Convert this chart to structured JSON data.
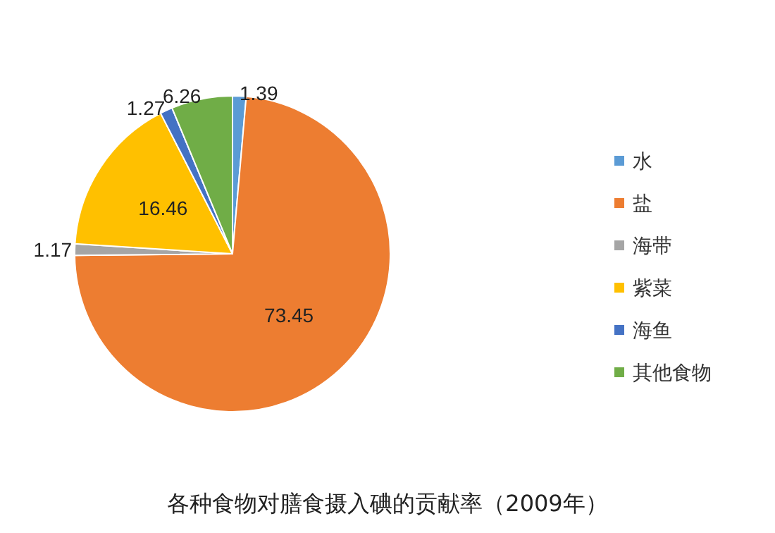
{
  "chart_data": {
    "type": "pie",
    "title": "各种食物对膳食摄入碘的贡献率（2009年）",
    "categories": [
      "水",
      "盐",
      "海带",
      "紫菜",
      "海鱼",
      "其他食物"
    ],
    "values": [
      1.39,
      73.45,
      1.17,
      16.46,
      1.27,
      6.26
    ],
    "colors": [
      "#5b9bd5",
      "#ed7d31",
      "#a5a5a5",
      "#ffc000",
      "#4472c4",
      "#70ad47"
    ],
    "data_labels": true,
    "legend": "right"
  }
}
